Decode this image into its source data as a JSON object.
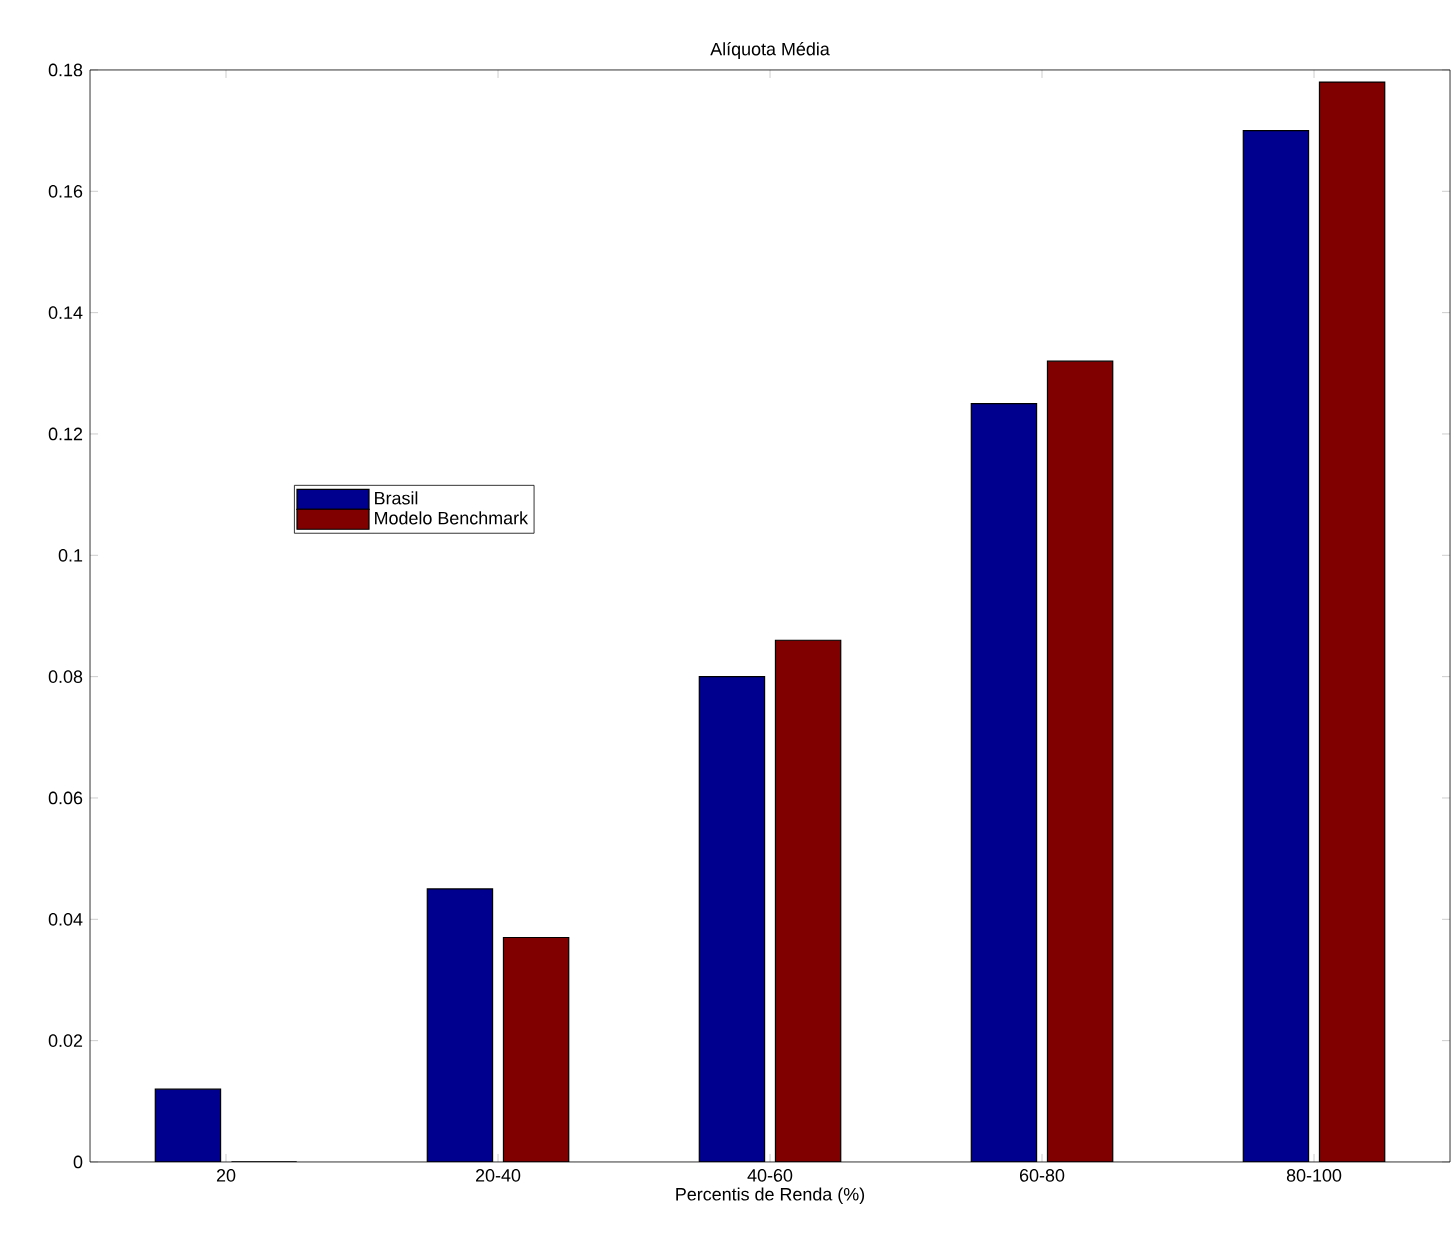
{
  "chart_data": {
    "type": "bar",
    "title": "Alíquota Média",
    "xlabel": "Percentis de Renda (%)",
    "categories": [
      "20",
      "20-40",
      "40-60",
      "60-80",
      "80-100"
    ],
    "series": [
      {
        "name": "Brasil",
        "color": "#00008f",
        "values": [
          0.012,
          0.045,
          0.08,
          0.125,
          0.17
        ]
      },
      {
        "name": "Modelo Benchmark",
        "color": "#800000",
        "values": [
          0,
          0.037,
          0.086,
          0.132,
          0.178
        ]
      }
    ],
    "ylim": [
      0,
      0.18
    ],
    "yticks": [
      0,
      0.02,
      0.04,
      0.06,
      0.08,
      0.1,
      0.12,
      0.14,
      0.16,
      0.18
    ],
    "legend": "left",
    "grid": false
  }
}
